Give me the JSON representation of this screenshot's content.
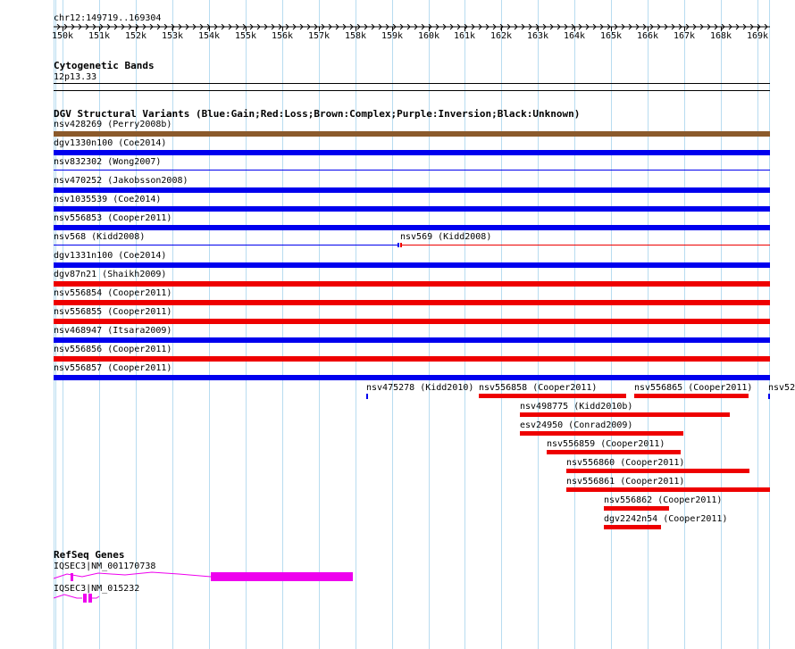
{
  "ruler": {
    "position": "chr12:149719..169304",
    "ticks": [
      "150k",
      "151k",
      "152k",
      "153k",
      "154k",
      "155k",
      "156k",
      "157k",
      "158k",
      "159k",
      "160k",
      "161k",
      "162k",
      "163k",
      "164k",
      "165k",
      "166k",
      "167k",
      "168k",
      "169k"
    ]
  },
  "cyto": {
    "title": "Cytogenetic Bands",
    "band": "12p13.33"
  },
  "dgv": {
    "title": "DGV Structural Variants (Blue:Gain;Red:Loss;Brown:Complex;Purple:Inversion;Black:Unknown)",
    "colors": {
      "gain": "#0000ee",
      "loss": "#ee0000",
      "complex": "#8b5a2b"
    },
    "rows": [
      {
        "label": "nsv428269 (Perry2008b)",
        "type": "complex",
        "style": "thick"
      },
      {
        "label": "dgv1330n100 (Coe2014)",
        "type": "gain",
        "style": "thick"
      },
      {
        "label": "nsv832302 (Wong2007)",
        "type": "gain",
        "style": "thin"
      },
      {
        "label": "nsv470252 (Jakobsson2008)",
        "type": "gain",
        "style": "thick"
      },
      {
        "label": "nsv1035539 (Coe2014)",
        "type": "gain",
        "style": "thick"
      },
      {
        "label": "nsv556853 (Cooper2011)",
        "type": "gain",
        "style": "thick"
      },
      {
        "label": "nsv568 (Kidd2008)",
        "type": "gain",
        "style": "split",
        "label2": "nsv569 (Kidd2008)"
      },
      {
        "label": "dgv1331n100 (Coe2014)",
        "type": "gain",
        "style": "thick"
      },
      {
        "label": "dgv87n21 (Shaikh2009)",
        "type": "loss",
        "style": "thick"
      },
      {
        "label": "nsv556854 (Cooper2011)",
        "type": "loss",
        "style": "thick"
      },
      {
        "label": "nsv556855 (Cooper2011)",
        "type": "loss",
        "style": "thick"
      },
      {
        "label": "nsv468947 (Itsara2009)",
        "type": "gain",
        "style": "thick"
      },
      {
        "label": "nsv556856 (Cooper2011)",
        "type": "loss",
        "style": "thick"
      },
      {
        "label": "nsv556857 (Cooper2011)",
        "type": "gain",
        "style": "thick"
      }
    ],
    "partial": [
      {
        "label": "nsv475278 (Kidd2010)",
        "type": "gain"
      },
      {
        "label": "nsv556858 (Cooper2011)",
        "type": "loss"
      },
      {
        "label": "nsv556865 (Cooper2011)",
        "type": "loss"
      },
      {
        "label": "nsv52",
        "type": "gain"
      },
      {
        "label": "nsv498775 (Kidd2010b)",
        "type": "loss"
      },
      {
        "label": "esv24950 (Conrad2009)",
        "type": "loss"
      },
      {
        "label": "nsv556859 (Cooper2011)",
        "type": "loss"
      },
      {
        "label": "nsv556860 (Cooper2011)",
        "type": "loss"
      },
      {
        "label": "nsv556861 (Cooper2011)",
        "type": "loss"
      },
      {
        "label": "nsv556862 (Cooper2011)",
        "type": "loss"
      },
      {
        "label": "dgv2242n54 (Cooper2011)",
        "type": "loss"
      }
    ]
  },
  "refseq": {
    "title": "RefSeq Genes",
    "color": "#ee00ee",
    "genes": [
      {
        "label": "IQSEC3|NM_001170738"
      },
      {
        "label": "IQSEC3|NM_015232"
      }
    ]
  }
}
